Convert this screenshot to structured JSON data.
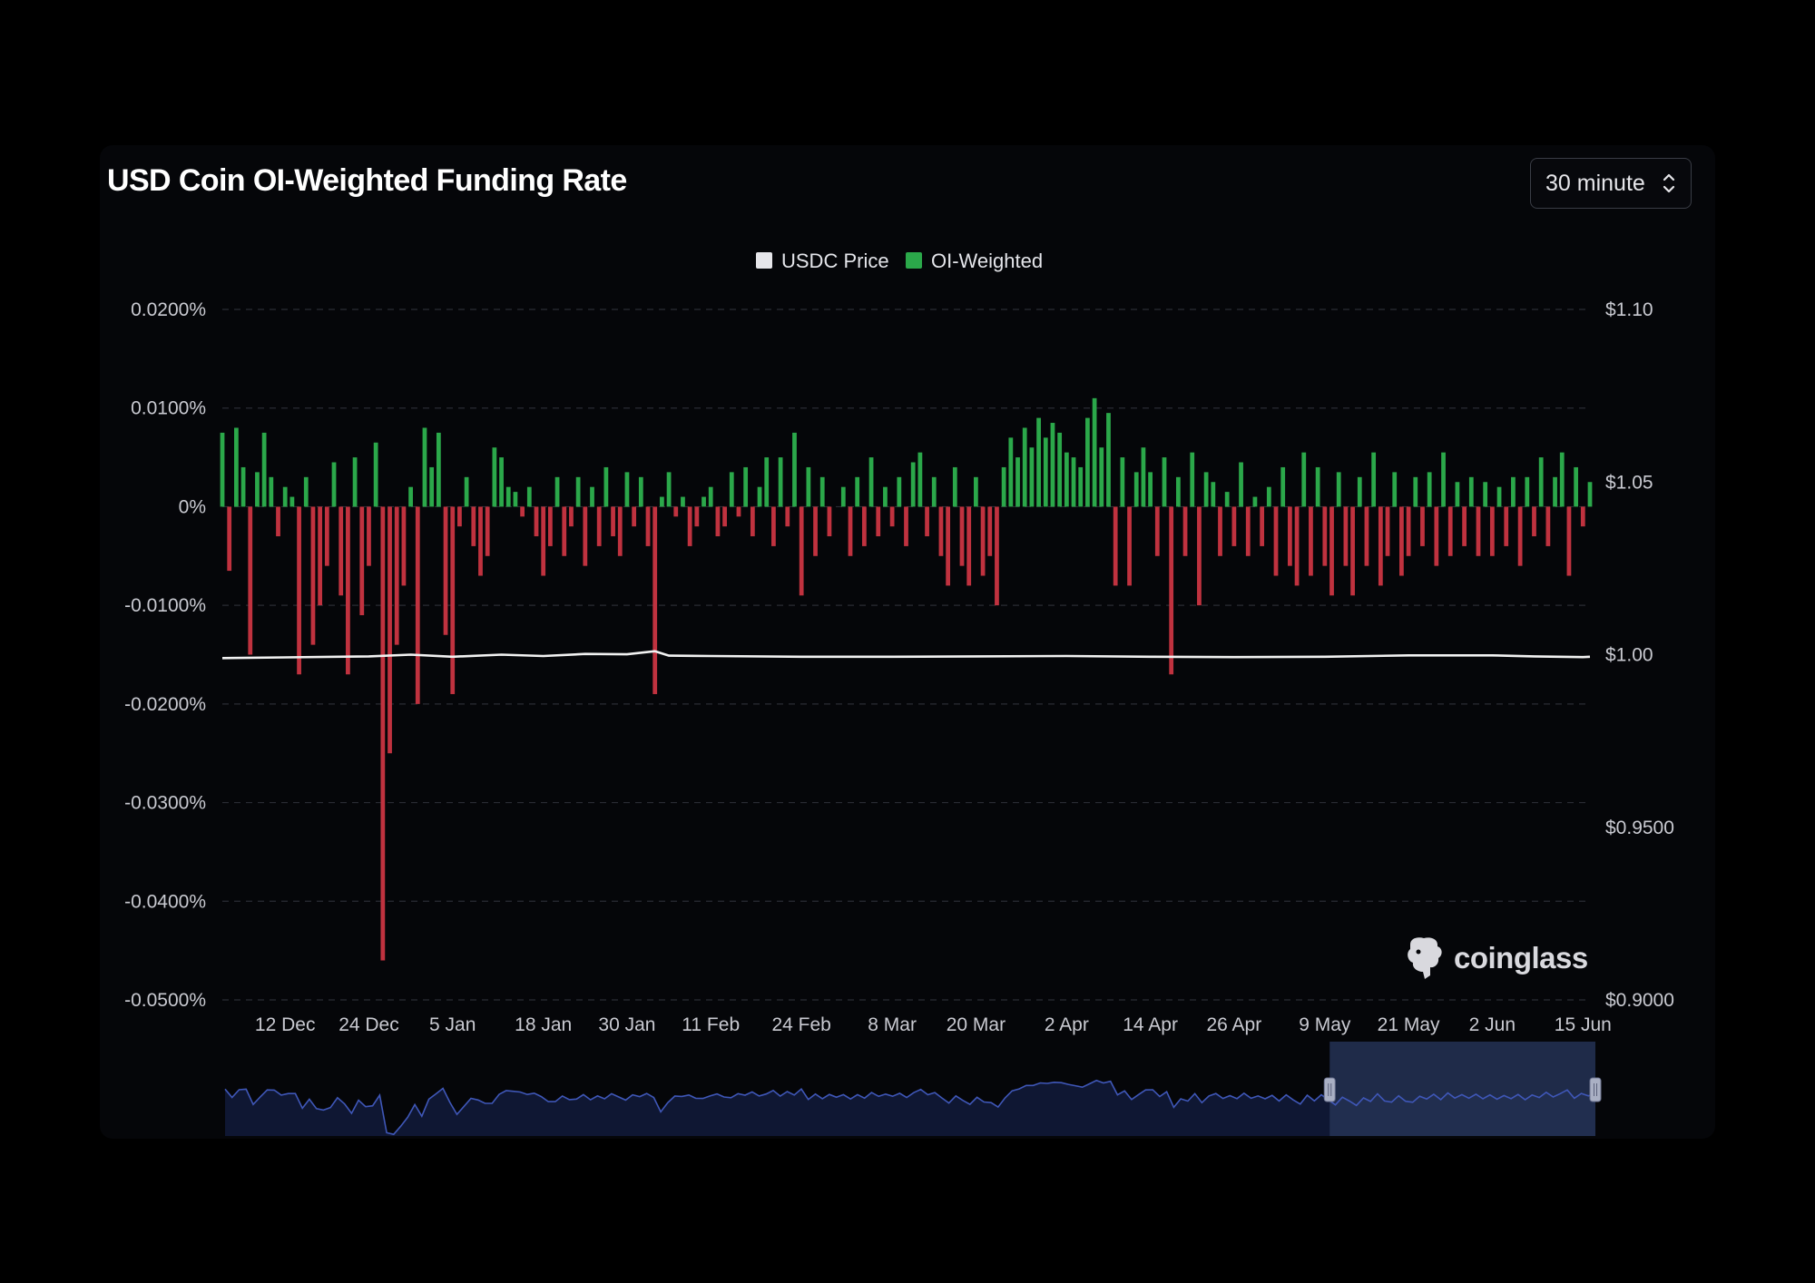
{
  "title": "USD Coin OI-Weighted Funding Rate",
  "interval": {
    "label": "30 minute"
  },
  "legend": [
    {
      "name": "USDC Price",
      "color": "#e6e6ea"
    },
    {
      "name": "OI-Weighted",
      "color": "#2ba84a"
    }
  ],
  "colors": {
    "positive": "#2ba84a",
    "negative": "#c0323f",
    "price_line": "#f2f2f2",
    "grid": "#2a2c34",
    "navigator_line": "#3f57b8",
    "navigator_fill": "#0f1733",
    "navigator_selection": "#243255"
  },
  "watermark": {
    "text": "coinglass",
    "icon": "coinglass-logo-icon"
  },
  "chart_data": {
    "type": "bar",
    "title": "USD Coin OI-Weighted Funding Rate",
    "left_axis": {
      "ticks": [
        "0.0200%",
        "0.0100%",
        "0%",
        "-0.0100%",
        "-0.0200%",
        "-0.0300%",
        "-0.0400%",
        "-0.0500%"
      ],
      "tick_values": [
        0.02,
        0.01,
        0,
        -0.01,
        -0.02,
        -0.03,
        -0.04,
        -0.05
      ],
      "range": [
        -0.05,
        0.02
      ],
      "unit": "%"
    },
    "right_axis": {
      "ticks": [
        "$1.10",
        "$1.05",
        "$1.00",
        "$0.9500",
        "$0.9000"
      ],
      "tick_values": [
        1.1,
        1.05,
        1.0,
        0.95,
        0.9
      ],
      "range": [
        0.9,
        1.1
      ]
    },
    "x_axis": {
      "ticks": [
        "12 Dec",
        "24 Dec",
        "5 Jan",
        "18 Jan",
        "30 Jan",
        "11 Feb",
        "24 Feb",
        "8 Mar",
        "20 Mar",
        "2 Apr",
        "14 Apr",
        "26 Apr",
        "9 May",
        "21 May",
        "2 Jun",
        "15 Jun"
      ],
      "range": [
        "3 Dec",
        "16 Jun"
      ]
    },
    "grid": true,
    "legend_position": "top-center",
    "series": [
      {
        "name": "OI-Weighted",
        "kind": "bar",
        "unit": "%",
        "points": [
          [
            "3 Dec",
            0.0075
          ],
          [
            "4 Dec",
            -0.0065
          ],
          [
            "5 Dec",
            0.008
          ],
          [
            "6 Dec",
            0.004
          ],
          [
            "7 Dec",
            -0.015
          ],
          [
            "8 Dec",
            0.0035
          ],
          [
            "9 Dec",
            0.0075
          ],
          [
            "10 Dec",
            0.003
          ],
          [
            "11 Dec",
            -0.003
          ],
          [
            "12 Dec",
            0.002
          ],
          [
            "13 Dec",
            0.001
          ],
          [
            "14 Dec",
            -0.017
          ],
          [
            "15 Dec",
            0.003
          ],
          [
            "16 Dec",
            -0.014
          ],
          [
            "17 Dec",
            -0.01
          ],
          [
            "18 Dec",
            -0.006
          ],
          [
            "19 Dec",
            0.0045
          ],
          [
            "20 Dec",
            -0.009
          ],
          [
            "21 Dec",
            -0.017
          ],
          [
            "22 Dec",
            0.005
          ],
          [
            "23 Dec",
            -0.011
          ],
          [
            "24 Dec",
            -0.006
          ],
          [
            "25 Dec",
            0.0065
          ],
          [
            "26 Dec",
            -0.046
          ],
          [
            "27 Dec",
            -0.025
          ],
          [
            "28 Dec",
            -0.014
          ],
          [
            "29 Dec",
            -0.008
          ],
          [
            "30 Dec",
            0.002
          ],
          [
            "31 Dec",
            -0.02
          ],
          [
            "1 Jan",
            0.008
          ],
          [
            "2 Jan",
            0.004
          ],
          [
            "3 Jan",
            0.0075
          ],
          [
            "4 Jan",
            -0.013
          ],
          [
            "5 Jan",
            -0.019
          ],
          [
            "6 Jan",
            -0.002
          ],
          [
            "7 Jan",
            0.003
          ],
          [
            "8 Jan",
            -0.004
          ],
          [
            "9 Jan",
            -0.007
          ],
          [
            "10 Jan",
            -0.005
          ],
          [
            "11 Jan",
            0.006
          ],
          [
            "12 Jan",
            0.005
          ],
          [
            "13 Jan",
            0.002
          ],
          [
            "14 Jan",
            0.0015
          ],
          [
            "15 Jan",
            -0.001
          ],
          [
            "16 Jan",
            0.002
          ],
          [
            "17 Jan",
            -0.003
          ],
          [
            "18 Jan",
            -0.007
          ],
          [
            "19 Jan",
            -0.004
          ],
          [
            "20 Jan",
            0.003
          ],
          [
            "21 Jan",
            -0.005
          ],
          [
            "22 Jan",
            -0.002
          ],
          [
            "23 Jan",
            0.003
          ],
          [
            "24 Jan",
            -0.006
          ],
          [
            "25 Jan",
            0.002
          ],
          [
            "26 Jan",
            -0.004
          ],
          [
            "27 Jan",
            0.004
          ],
          [
            "28 Jan",
            -0.003
          ],
          [
            "29 Jan",
            -0.005
          ],
          [
            "30 Jan",
            0.0035
          ],
          [
            "31 Jan",
            -0.002
          ],
          [
            "1 Feb",
            0.003
          ],
          [
            "2 Feb",
            -0.004
          ],
          [
            "3 Feb",
            -0.019
          ],
          [
            "4 Feb",
            0.001
          ],
          [
            "5 Feb",
            0.0035
          ],
          [
            "6 Feb",
            -0.001
          ],
          [
            "7 Feb",
            0.001
          ],
          [
            "8 Feb",
            -0.004
          ],
          [
            "9 Feb",
            -0.002
          ],
          [
            "10 Feb",
            0.001
          ],
          [
            "11 Feb",
            0.002
          ],
          [
            "12 Feb",
            -0.003
          ],
          [
            "13 Feb",
            -0.002
          ],
          [
            "14 Feb",
            0.0035
          ],
          [
            "15 Feb",
            -0.001
          ],
          [
            "16 Feb",
            0.004
          ],
          [
            "17 Feb",
            -0.003
          ],
          [
            "18 Feb",
            0.002
          ],
          [
            "19 Feb",
            0.005
          ],
          [
            "20 Feb",
            -0.004
          ],
          [
            "21 Feb",
            0.005
          ],
          [
            "22 Feb",
            -0.002
          ],
          [
            "23 Feb",
            0.0075
          ],
          [
            "24 Feb",
            -0.009
          ],
          [
            "25 Feb",
            0.004
          ],
          [
            "26 Feb",
            -0.005
          ],
          [
            "27 Feb",
            0.003
          ],
          [
            "28 Feb",
            -0.003
          ],
          [
            "1 Mar",
            0.002
          ],
          [
            "2 Mar",
            -0.005
          ],
          [
            "3 Mar",
            0.003
          ],
          [
            "4 Mar",
            -0.004
          ],
          [
            "5 Mar",
            0.005
          ],
          [
            "6 Mar",
            -0.003
          ],
          [
            "7 Mar",
            0.002
          ],
          [
            "8 Mar",
            -0.002
          ],
          [
            "9 Mar",
            0.003
          ],
          [
            "10 Mar",
            -0.004
          ],
          [
            "11 Mar",
            0.0045
          ],
          [
            "12 Mar",
            0.0055
          ],
          [
            "13 Mar",
            -0.003
          ],
          [
            "14 Mar",
            0.003
          ],
          [
            "15 Mar",
            -0.005
          ],
          [
            "16 Mar",
            -0.008
          ],
          [
            "17 Mar",
            0.004
          ],
          [
            "18 Mar",
            -0.006
          ],
          [
            "19 Mar",
            -0.008
          ],
          [
            "20 Mar",
            0.003
          ],
          [
            "21 Mar",
            -0.007
          ],
          [
            "22 Mar",
            -0.005
          ],
          [
            "23 Mar",
            -0.01
          ],
          [
            "24 Mar",
            0.004
          ],
          [
            "25 Mar",
            0.007
          ],
          [
            "26 Mar",
            0.005
          ],
          [
            "27 Mar",
            0.008
          ],
          [
            "28 Mar",
            0.006
          ],
          [
            "29 Mar",
            0.009
          ],
          [
            "30 Mar",
            0.007
          ],
          [
            "31 Mar",
            0.0085
          ],
          [
            "1 Apr",
            0.0075
          ],
          [
            "2 Apr",
            0.0055
          ],
          [
            "3 Apr",
            0.005
          ],
          [
            "4 Apr",
            0.004
          ],
          [
            "5 Apr",
            0.009
          ],
          [
            "6 Apr",
            0.011
          ],
          [
            "7 Apr",
            0.006
          ],
          [
            "8 Apr",
            0.0095
          ],
          [
            "9 Apr",
            -0.008
          ],
          [
            "10 Apr",
            0.005
          ],
          [
            "11 Apr",
            -0.008
          ],
          [
            "12 Apr",
            0.0035
          ],
          [
            "13 Apr",
            0.006
          ],
          [
            "14 Apr",
            0.0035
          ],
          [
            "15 Apr",
            -0.005
          ],
          [
            "16 Apr",
            0.005
          ],
          [
            "17 Apr",
            -0.017
          ],
          [
            "18 Apr",
            0.003
          ],
          [
            "19 Apr",
            -0.005
          ],
          [
            "20 Apr",
            0.0055
          ],
          [
            "21 Apr",
            -0.01
          ],
          [
            "22 Apr",
            0.0035
          ],
          [
            "23 Apr",
            0.0025
          ],
          [
            "24 Apr",
            -0.005
          ],
          [
            "25 Apr",
            0.0015
          ],
          [
            "26 Apr",
            -0.004
          ],
          [
            "27 Apr",
            0.0045
          ],
          [
            "28 Apr",
            -0.005
          ],
          [
            "29 Apr",
            0.001
          ],
          [
            "30 Apr",
            -0.004
          ],
          [
            "1 May",
            0.002
          ],
          [
            "2 May",
            -0.007
          ],
          [
            "3 May",
            0.004
          ],
          [
            "4 May",
            -0.006
          ],
          [
            "5 May",
            -0.008
          ],
          [
            "6 May",
            0.0055
          ],
          [
            "7 May",
            -0.007
          ],
          [
            "8 May",
            0.004
          ],
          [
            "9 May",
            -0.006
          ],
          [
            "10 May",
            -0.009
          ],
          [
            "11 May",
            0.0035
          ],
          [
            "12 May",
            -0.006
          ],
          [
            "13 May",
            -0.009
          ],
          [
            "14 May",
            0.003
          ],
          [
            "15 May",
            -0.006
          ],
          [
            "16 May",
            0.0055
          ],
          [
            "17 May",
            -0.008
          ],
          [
            "18 May",
            -0.005
          ],
          [
            "19 May",
            0.0035
          ],
          [
            "20 May",
            -0.007
          ],
          [
            "21 May",
            -0.005
          ],
          [
            "22 May",
            0.003
          ],
          [
            "23 May",
            -0.004
          ],
          [
            "24 May",
            0.0035
          ],
          [
            "25 May",
            -0.006
          ],
          [
            "26 May",
            0.0055
          ],
          [
            "27 May",
            -0.005
          ],
          [
            "28 May",
            0.0025
          ],
          [
            "29 May",
            -0.004
          ],
          [
            "30 May",
            0.003
          ],
          [
            "31 May",
            -0.005
          ],
          [
            "1 Jun",
            0.0025
          ],
          [
            "2 Jun",
            -0.005
          ],
          [
            "3 Jun",
            0.002
          ],
          [
            "4 Jun",
            -0.004
          ],
          [
            "5 Jun",
            0.003
          ],
          [
            "6 Jun",
            -0.006
          ],
          [
            "7 Jun",
            0.003
          ],
          [
            "8 Jun",
            -0.003
          ],
          [
            "9 Jun",
            0.005
          ],
          [
            "10 Jun",
            -0.004
          ],
          [
            "11 Jun",
            0.003
          ],
          [
            "12 Jun",
            0.0055
          ],
          [
            "13 Jun",
            -0.007
          ],
          [
            "14 Jun",
            0.004
          ],
          [
            "15 Jun",
            -0.002
          ],
          [
            "16 Jun",
            0.0025
          ]
        ]
      },
      {
        "name": "USDC Price",
        "kind": "line",
        "points": [
          [
            "3 Dec",
            0.999
          ],
          [
            "12 Dec",
            0.9992
          ],
          [
            "24 Dec",
            0.9995
          ],
          [
            "30 Dec",
            1.0
          ],
          [
            "5 Jan",
            0.9994
          ],
          [
            "12 Jan",
            1.0
          ],
          [
            "18 Jan",
            0.9996
          ],
          [
            "24 Jan",
            1.0002
          ],
          [
            "30 Jan",
            1.0001
          ],
          [
            "3 Feb",
            1.001
          ],
          [
            "5 Feb",
            0.9997
          ],
          [
            "11 Feb",
            0.9996
          ],
          [
            "24 Feb",
            0.9994
          ],
          [
            "8 Mar",
            0.9994
          ],
          [
            "20 Mar",
            0.9995
          ],
          [
            "2 Apr",
            0.9996
          ],
          [
            "14 Apr",
            0.9994
          ],
          [
            "26 Apr",
            0.9993
          ],
          [
            "9 May",
            0.9994
          ],
          [
            "21 May",
            0.9998
          ],
          [
            "2 Jun",
            0.9998
          ],
          [
            "8 Jun",
            0.9995
          ],
          [
            "15 Jun",
            0.9993
          ],
          [
            "16 Jun",
            0.9994
          ]
        ]
      }
    ],
    "navigator": {
      "selection": [
        "9 May",
        "16 Jun"
      ]
    }
  }
}
